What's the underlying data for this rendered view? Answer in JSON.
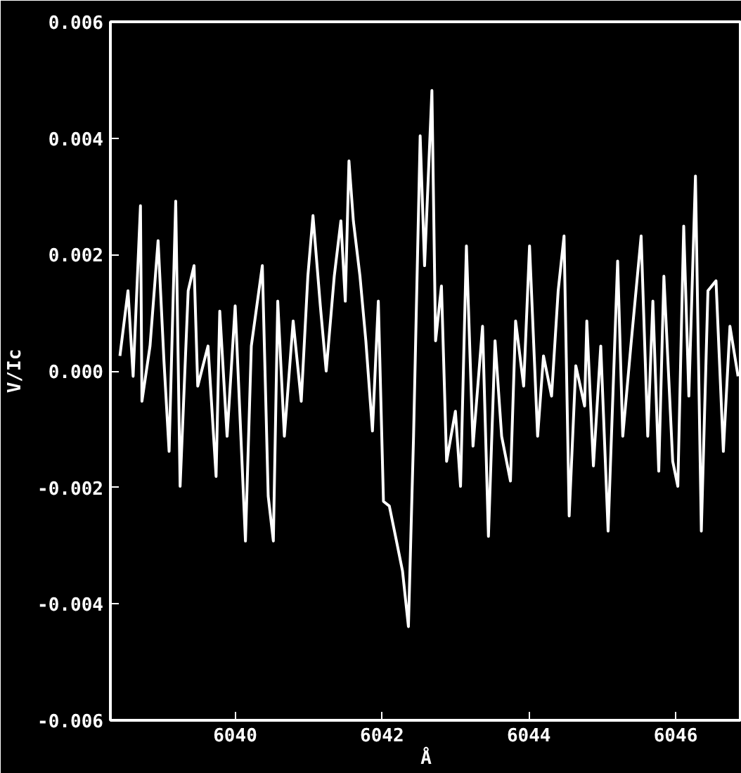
{
  "chart_data": {
    "type": "line",
    "xlabel": "Å",
    "ylabel": "V/Ic",
    "xlim": [
      6038.3,
      6046.9
    ],
    "xticks": [
      6040,
      6042,
      6044,
      6046
    ],
    "ylim": [
      -0.006,
      0.006
    ],
    "yticks": [
      -0.006,
      -0.004,
      -0.002,
      {
        "value": 0,
        "label": "0.000"
      },
      0.002,
      0.004,
      0.006
    ],
    "grid": false,
    "marker": "none",
    "line_style": "solid",
    "series": [
      {
        "color": "#ffffff",
        "x": [
          6038.43,
          6038.54,
          6038.61,
          6038.71,
          6038.73,
          6038.84,
          6038.95,
          6039.03,
          6039.1,
          6039.19,
          6039.25,
          6039.36,
          6039.44,
          6039.49,
          6039.63,
          6039.74,
          6039.79,
          6039.89,
          6040.0,
          6040.14,
          6040.22,
          6040.37,
          6040.45,
          6040.52,
          6040.58,
          6040.67,
          6040.79,
          6040.9,
          6040.99,
          6041.06,
          6041.16,
          6041.24,
          6041.35,
          6041.44,
          6041.5,
          6041.55,
          6041.61,
          6041.7,
          6041.78,
          6041.87,
          6041.95,
          6042.02,
          6042.1,
          6042.17,
          6042.28,
          6042.36,
          6042.43,
          6042.52,
          6042.58,
          6042.68,
          6042.73,
          6042.81,
          6042.88,
          6043.0,
          6043.07,
          6043.15,
          6043.24,
          6043.37,
          6043.45,
          6043.54,
          6043.63,
          6043.75,
          6043.82,
          6043.93,
          6044.01,
          6044.12,
          6044.2,
          6044.31,
          6044.4,
          6044.48,
          6044.55,
          6044.64,
          6044.76,
          6044.79,
          6044.88,
          6044.98,
          6045.08,
          6045.21,
          6045.28,
          6045.39,
          6045.53,
          6045.62,
          6045.69,
          6045.77,
          6045.84,
          6045.96,
          6046.03,
          6046.11,
          6046.18,
          6046.27,
          6046.35,
          6046.44,
          6046.55,
          6046.65,
          6046.74,
          6046.85
        ],
        "values": [
          0.00026,
          0.00138,
          -9e-05,
          0.00284,
          -0.00052,
          0.00043,
          0.00224,
          0.00017,
          -0.00138,
          0.00292,
          -0.00198,
          0.00138,
          0.00181,
          -0.00026,
          0.00043,
          -0.00181,
          0.00103,
          -0.00112,
          0.00112,
          -0.00292,
          0.00043,
          0.00181,
          -0.00215,
          -0.00292,
          0.0012,
          -0.00112,
          0.00086,
          -0.00052,
          0.00163,
          0.00267,
          0.00112,
          0.0,
          0.00163,
          0.00258,
          0.0012,
          0.00361,
          0.00258,
          0.00163,
          0.00052,
          -0.00103,
          0.0012,
          -0.00224,
          -0.00232,
          -0.00275,
          -0.00344,
          -0.00439,
          -0.00112,
          0.00404,
          0.00181,
          0.00482,
          0.00052,
          0.00146,
          -0.00155,
          -0.00069,
          -0.00198,
          0.00215,
          -0.00129,
          0.00077,
          -0.00284,
          0.00052,
          -0.00112,
          -0.00189,
          0.00086,
          -0.00026,
          0.00215,
          -0.00112,
          0.00026,
          -0.00043,
          0.00138,
          0.00232,
          -0.00249,
          9e-05,
          -0.0006,
          0.00086,
          -0.00163,
          0.00043,
          -0.00275,
          0.00189,
          -0.00112,
          0.00043,
          0.00232,
          -0.00112,
          0.0012,
          -0.00172,
          0.00163,
          -0.00155,
          -0.00198,
          0.00249,
          -0.00043,
          0.00335,
          -0.00275,
          0.00138,
          0.00155,
          -0.00138,
          0.00077,
          -9e-05
        ]
      }
    ]
  }
}
